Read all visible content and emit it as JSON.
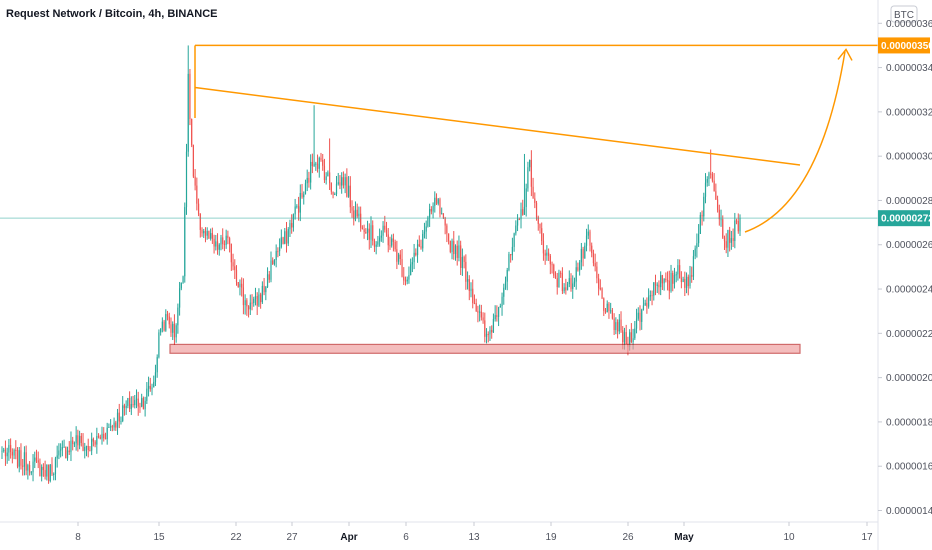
{
  "header": {
    "title": "Request Network / Bitcoin, 4h, BINANCE"
  },
  "axis": {
    "currency_button": "BTC",
    "ylim": [
      1.33e-06,
      3.66e-06
    ],
    "y_ticks": [
      "0.00000360",
      "0.00000340",
      "0.00000320",
      "0.00000300",
      "0.00000280",
      "0.00000260",
      "0.00000240",
      "0.00000220",
      "0.00000200",
      "0.00000180",
      "0.00000160",
      "0.00000140"
    ],
    "x_ticks": [
      {
        "label": "8",
        "bold": false
      },
      {
        "label": "15",
        "bold": false
      },
      {
        "label": "22",
        "bold": false
      },
      {
        "label": "27",
        "bold": false
      },
      {
        "label": "Apr",
        "bold": true
      },
      {
        "label": "6",
        "bold": false
      },
      {
        "label": "13",
        "bold": false
      },
      {
        "label": "19",
        "bold": false
      },
      {
        "label": "26",
        "bold": false
      },
      {
        "label": "May",
        "bold": true
      },
      {
        "label": "10",
        "bold": false
      },
      {
        "label": "17",
        "bold": false
      }
    ]
  },
  "badges": {
    "target_price": "0.00000350",
    "target_color": "#ff9800",
    "current_price": "0.00000272",
    "current_color": "#26a69a"
  },
  "colors": {
    "up": "#26a69a",
    "down": "#ef5350",
    "annotation": "#ff9800",
    "support_fill": "#ef9a9a",
    "support_border": "#b71c1c"
  },
  "chart_data": {
    "type": "candlestick",
    "title": "Request Network / Bitcoin, 4h, BINANCE",
    "x_unit": "candle index (4h)",
    "y_unit": "BTC",
    "ylim": [
      1.33e-06,
      3.66e-06
    ],
    "grid": false,
    "close_anchors": [
      [
        0,
        1.67e-06
      ],
      [
        10,
        1.63e-06
      ],
      [
        20,
        1.6e-06
      ],
      [
        27,
        1.57e-06
      ],
      [
        33,
        1.64e-06
      ],
      [
        42,
        1.72e-06
      ],
      [
        50,
        1.68e-06
      ],
      [
        58,
        1.74e-06
      ],
      [
        66,
        1.81e-06
      ],
      [
        74,
        1.88e-06
      ],
      [
        82,
        1.9e-06
      ],
      [
        88,
        1.98e-06
      ],
      [
        92,
        2.24e-06
      ],
      [
        96,
        2.26e-06
      ],
      [
        100,
        2.2e-06
      ],
      [
        105,
        2.5e-06
      ],
      [
        108,
        3.33e-06
      ],
      [
        111,
        2.9e-06
      ],
      [
        114,
        2.7e-06
      ],
      [
        118,
        2.65e-06
      ],
      [
        124,
        2.58e-06
      ],
      [
        130,
        2.62e-06
      ],
      [
        135,
        2.5e-06
      ],
      [
        140,
        2.35e-06
      ],
      [
        146,
        2.32e-06
      ],
      [
        152,
        2.4e-06
      ],
      [
        158,
        2.55e-06
      ],
      [
        164,
        2.62e-06
      ],
      [
        170,
        2.75e-06
      ],
      [
        176,
        2.85e-06
      ],
      [
        181,
        3e-06
      ],
      [
        186,
        2.95e-06
      ],
      [
        192,
        2.85e-06
      ],
      [
        198,
        2.9e-06
      ],
      [
        204,
        2.75e-06
      ],
      [
        210,
        2.7e-06
      ],
      [
        216,
        2.62e-06
      ],
      [
        222,
        2.65e-06
      ],
      [
        228,
        2.58e-06
      ],
      [
        234,
        2.45e-06
      ],
      [
        240,
        2.55e-06
      ],
      [
        246,
        2.68e-06
      ],
      [
        252,
        2.8e-06
      ],
      [
        258,
        2.62e-06
      ],
      [
        264,
        2.58e-06
      ],
      [
        270,
        2.45e-06
      ],
      [
        276,
        2.3e-06
      ],
      [
        281,
        2.17e-06
      ],
      [
        286,
        2.28e-06
      ],
      [
        292,
        2.45e-06
      ],
      [
        298,
        2.65e-06
      ],
      [
        303,
        2.8e-06
      ],
      [
        306,
        2.97e-06
      ],
      [
        310,
        2.7e-06
      ],
      [
        316,
        2.55e-06
      ],
      [
        322,
        2.45e-06
      ],
      [
        328,
        2.4e-06
      ],
      [
        334,
        2.5e-06
      ],
      [
        340,
        2.62e-06
      ],
      [
        346,
        2.4e-06
      ],
      [
        352,
        2.27e-06
      ],
      [
        358,
        2.22e-06
      ],
      [
        362,
        2.15e-06
      ],
      [
        368,
        2.25e-06
      ],
      [
        374,
        2.35e-06
      ],
      [
        380,
        2.45e-06
      ],
      [
        386,
        2.4e-06
      ],
      [
        392,
        2.5e-06
      ],
      [
        398,
        2.4e-06
      ],
      [
        404,
        2.68e-06
      ],
      [
        408,
        2.85e-06
      ],
      [
        411,
        2.95e-06
      ],
      [
        415,
        2.8e-06
      ],
      [
        419,
        2.62e-06
      ],
      [
        424,
        2.65e-06
      ],
      [
        428,
        2.72e-06
      ]
    ],
    "annotations": {
      "resistance_horizontal": 3.5e-06,
      "descending_trendline": {
        "start": 3.31e-06,
        "end": 2.96e-06
      },
      "support_zone": {
        "low": 2.11e-06,
        "high": 2.15e-06
      },
      "projection_arrow_target": 3.5e-06
    }
  }
}
